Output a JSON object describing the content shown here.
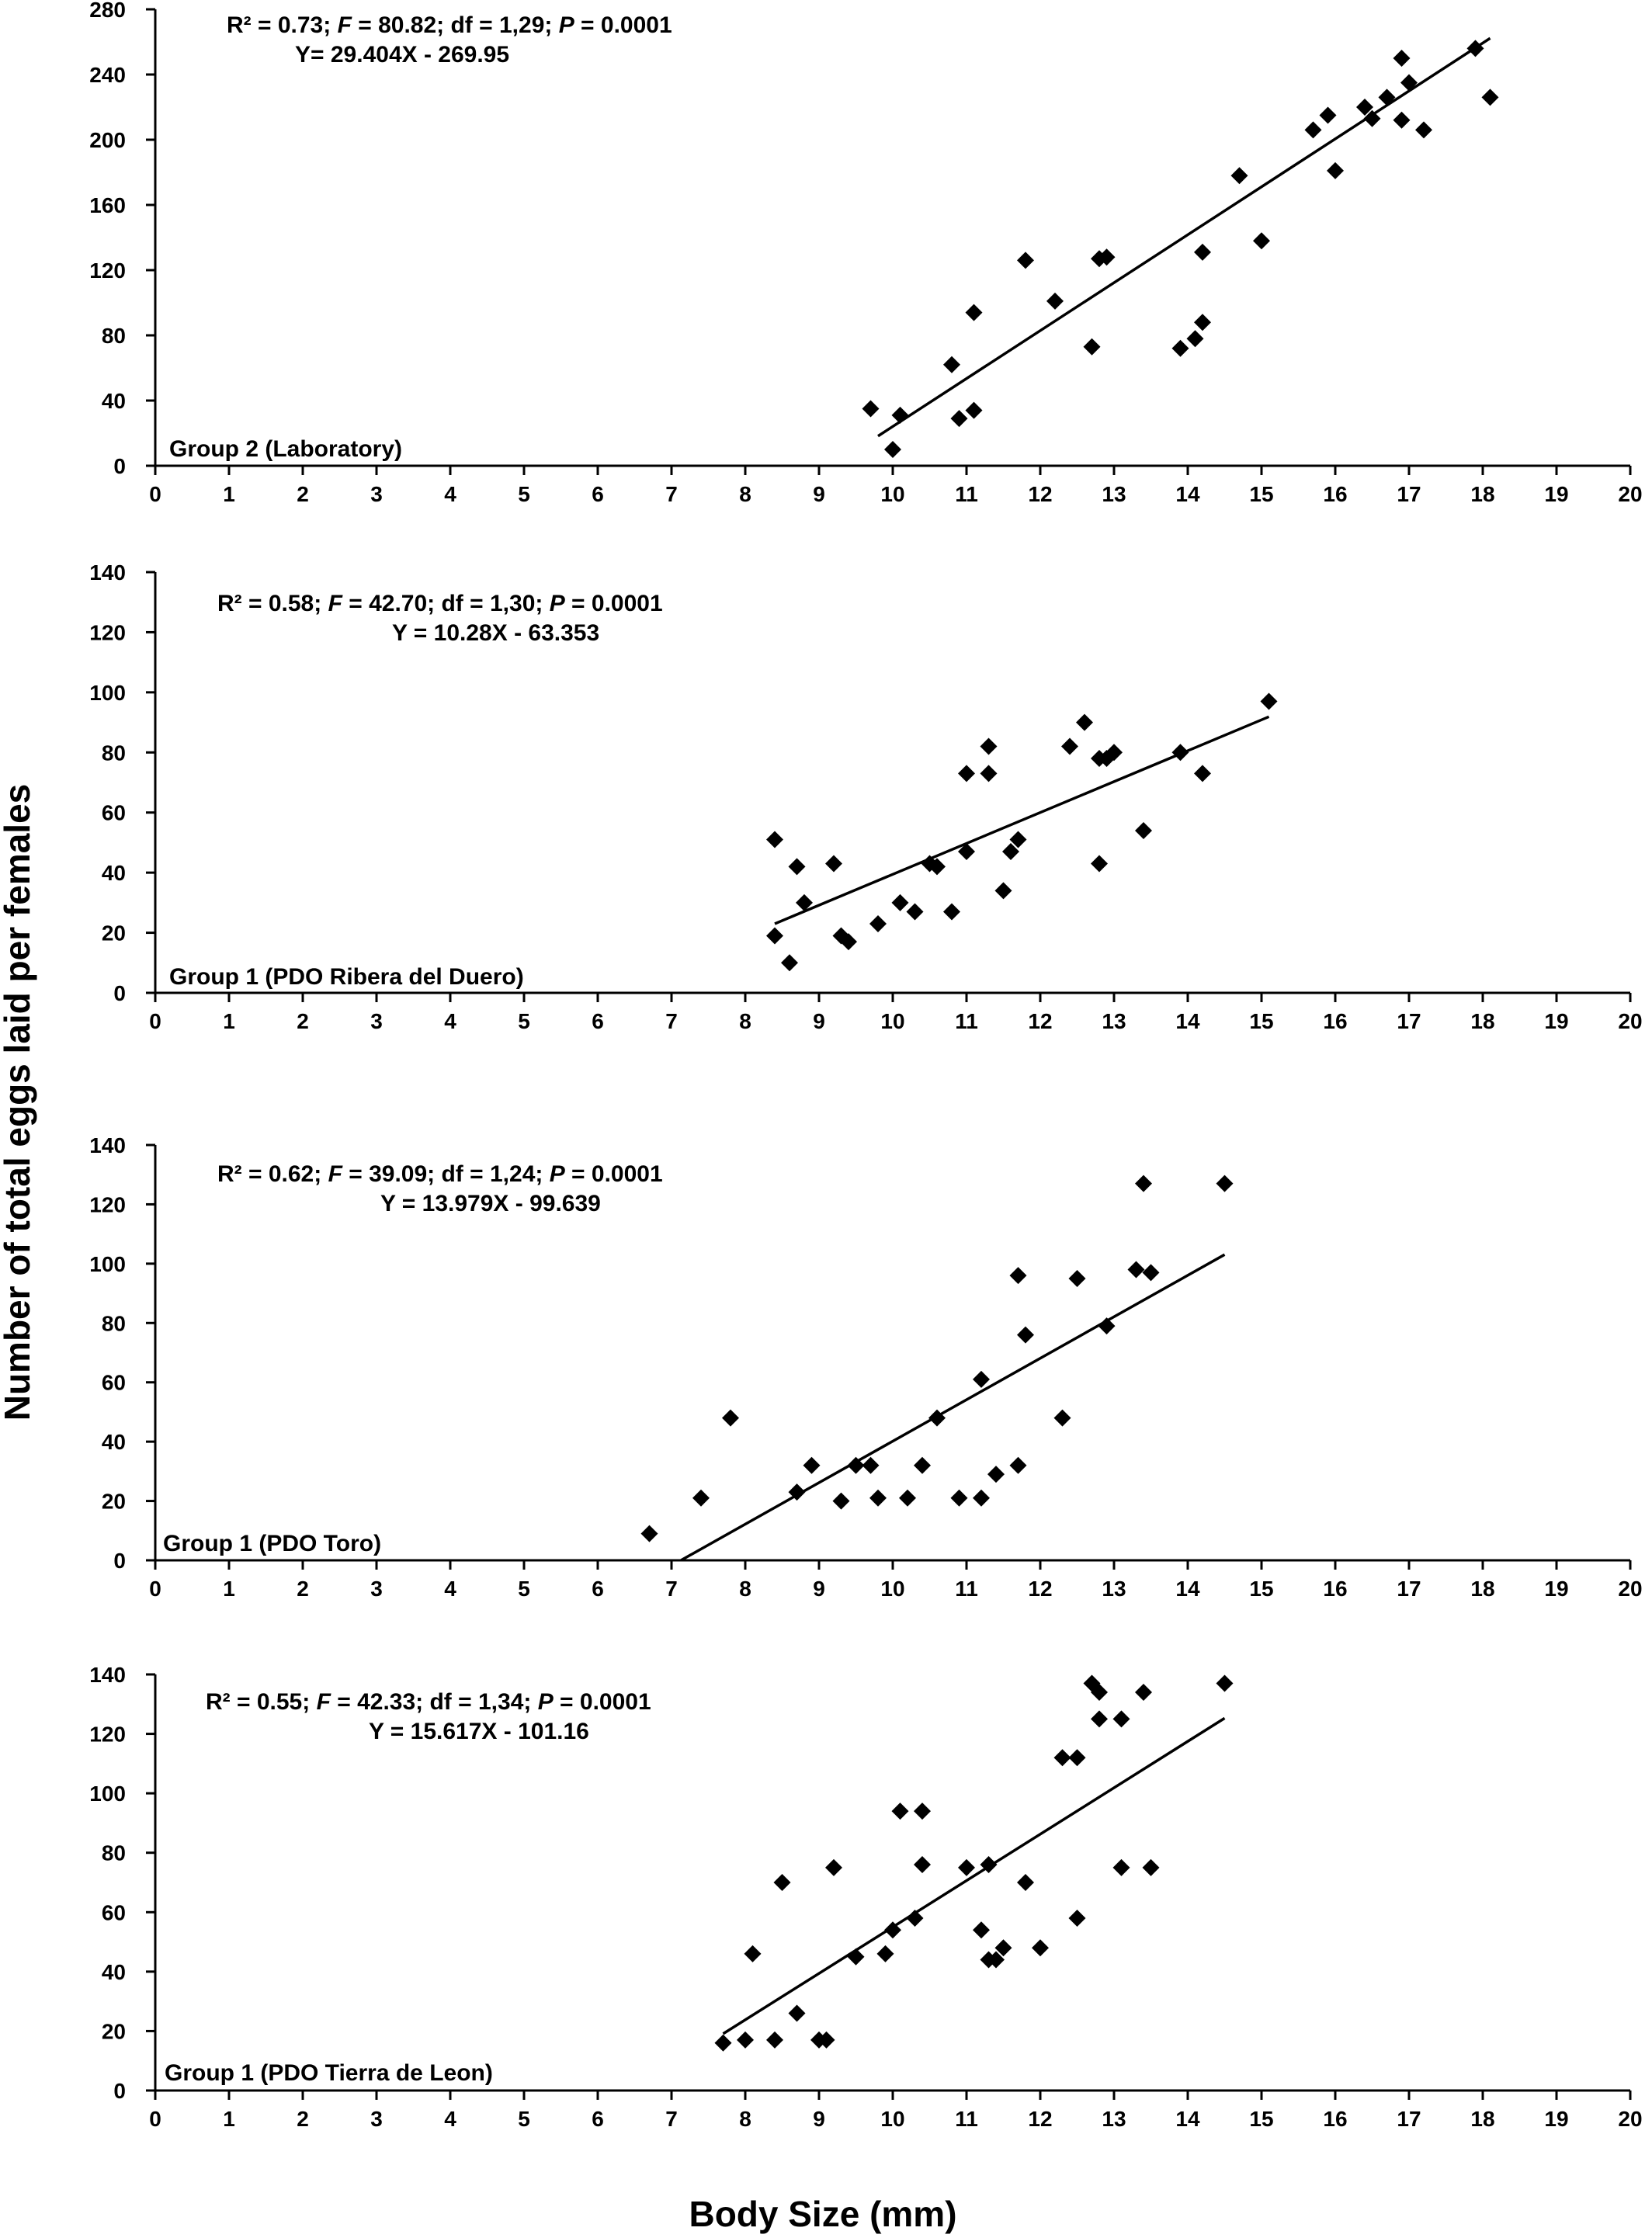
{
  "figure": {
    "ylabel": "Number of total eggs laid per females",
    "xlabel": "Body Size (mm)"
  },
  "chart_data": [
    {
      "type": "scatter",
      "group_label": "Group 2 (Laboratory)",
      "stats_parts": [
        "R² = 0.73; ",
        "F",
        " = 80.82; df  = 1,29; ",
        "P",
        " = 0.0001"
      ],
      "equation": "Y= 29.404X - 269.95",
      "xlim": [
        0,
        20
      ],
      "ylim": [
        0,
        280
      ],
      "xticks": [
        "0",
        "1",
        "2",
        "3",
        "4",
        "5",
        "6",
        "7",
        "8",
        "9",
        "10",
        "11",
        "12",
        "13",
        "14",
        "15",
        "16",
        "17",
        "18",
        "19",
        "20"
      ],
      "yticks": [
        "0",
        "40",
        "80",
        "120",
        "160",
        "200",
        "240",
        "280"
      ],
      "trend": {
        "x": [
          9.8,
          18.1
        ]
      },
      "points": [
        [
          9.7,
          35
        ],
        [
          10.0,
          10
        ],
        [
          10.1,
          31
        ],
        [
          10.8,
          62
        ],
        [
          10.9,
          29
        ],
        [
          11.1,
          34
        ],
        [
          11.1,
          94
        ],
        [
          11.8,
          126
        ],
        [
          12.2,
          101
        ],
        [
          12.7,
          73
        ],
        [
          12.8,
          127
        ],
        [
          12.9,
          128
        ],
        [
          13.9,
          72
        ],
        [
          14.1,
          78
        ],
        [
          14.2,
          88
        ],
        [
          14.2,
          131
        ],
        [
          14.7,
          178
        ],
        [
          15.0,
          138
        ],
        [
          15.7,
          206
        ],
        [
          15.9,
          215
        ],
        [
          16.0,
          181
        ],
        [
          16.4,
          220
        ],
        [
          16.5,
          213
        ],
        [
          16.7,
          226
        ],
        [
          16.9,
          212
        ],
        [
          16.9,
          250
        ],
        [
          17.0,
          235
        ],
        [
          17.2,
          206
        ],
        [
          17.9,
          256
        ],
        [
          18.1,
          226
        ]
      ]
    },
    {
      "type": "scatter",
      "group_label": "Group 1 (PDO Ribera del Duero)",
      "stats_parts": [
        "R² = 0.58; ",
        "F",
        " = 42.70; df  = 1,30; ",
        "P",
        " = 0.0001"
      ],
      "equation": "Y = 10.28X - 63.353",
      "xlim": [
        0,
        20
      ],
      "ylim": [
        0,
        140
      ],
      "xticks": [
        "0",
        "1",
        "2",
        "3",
        "4",
        "5",
        "6",
        "7",
        "8",
        "9",
        "10",
        "11",
        "12",
        "13",
        "14",
        "15",
        "16",
        "17",
        "18",
        "19",
        "20"
      ],
      "yticks": [
        "0",
        "20",
        "40",
        "60",
        "80",
        "100",
        "120",
        "140"
      ],
      "trend": {
        "x": [
          8.4,
          15.1
        ]
      },
      "points": [
        [
          8.4,
          51
        ],
        [
          8.4,
          19
        ],
        [
          8.6,
          10
        ],
        [
          8.7,
          42
        ],
        [
          8.8,
          30
        ],
        [
          9.2,
          43
        ],
        [
          9.3,
          19
        ],
        [
          9.4,
          17
        ],
        [
          9.8,
          23
        ],
        [
          10.1,
          30
        ],
        [
          10.3,
          27
        ],
        [
          10.5,
          43
        ],
        [
          10.6,
          42
        ],
        [
          10.8,
          27
        ],
        [
          11.0,
          47
        ],
        [
          11.0,
          73
        ],
        [
          11.3,
          73
        ],
        [
          11.3,
          82
        ],
        [
          11.5,
          34
        ],
        [
          11.6,
          47
        ],
        [
          11.7,
          51
        ],
        [
          12.4,
          82
        ],
        [
          12.6,
          90
        ],
        [
          12.8,
          43
        ],
        [
          12.8,
          78
        ],
        [
          12.9,
          78
        ],
        [
          13.0,
          80
        ],
        [
          13.4,
          54
        ],
        [
          13.9,
          80
        ],
        [
          14.2,
          73
        ],
        [
          15.1,
          97
        ]
      ]
    },
    {
      "type": "scatter",
      "group_label": "Group 1 (PDO Toro)",
      "stats_parts": [
        "R² = 0.62; ",
        "F",
        " = 39.09; df  = 1,24; ",
        "P",
        " = 0.0001"
      ],
      "equation": "Y = 13.979X - 99.639",
      "xlim": [
        0,
        20
      ],
      "ylim": [
        0,
        140
      ],
      "xticks": [
        "0",
        "1",
        "2",
        "3",
        "4",
        "5",
        "6",
        "7",
        "8",
        "9",
        "10",
        "11",
        "12",
        "13",
        "14",
        "15",
        "16",
        "17",
        "18",
        "19",
        "20"
      ],
      "yticks": [
        "0",
        "20",
        "40",
        "60",
        "80",
        "100",
        "120",
        "140"
      ],
      "trend": {
        "x": [
          7.13,
          14.5
        ]
      },
      "points": [
        [
          6.7,
          9
        ],
        [
          7.4,
          21
        ],
        [
          7.8,
          48
        ],
        [
          8.7,
          23
        ],
        [
          8.9,
          32
        ],
        [
          9.3,
          20
        ],
        [
          9.5,
          32
        ],
        [
          9.7,
          32
        ],
        [
          9.8,
          21
        ],
        [
          10.2,
          21
        ],
        [
          10.4,
          32
        ],
        [
          10.6,
          48
        ],
        [
          10.9,
          21
        ],
        [
          11.2,
          21
        ],
        [
          11.2,
          61
        ],
        [
          11.4,
          29
        ],
        [
          11.7,
          32
        ],
        [
          11.7,
          96
        ],
        [
          11.8,
          76
        ],
        [
          12.3,
          48
        ],
        [
          12.5,
          95
        ],
        [
          12.9,
          79
        ],
        [
          13.3,
          98
        ],
        [
          13.5,
          97
        ],
        [
          13.4,
          127
        ],
        [
          14.5,
          127
        ]
      ]
    },
    {
      "type": "scatter",
      "group_label": "Group 1 (PDO Tierra de Leon)",
      "stats_parts": [
        "R² = 0.55; ",
        "F",
        " = 42.33; df  = 1,34; ",
        "P",
        " = 0.0001"
      ],
      "equation": "Y = 15.617X - 101.16",
      "xlim": [
        0,
        20
      ],
      "ylim": [
        0,
        140
      ],
      "xticks": [
        "0",
        "1",
        "2",
        "3",
        "4",
        "5",
        "6",
        "7",
        "8",
        "9",
        "10",
        "11",
        "12",
        "13",
        "14",
        "15",
        "16",
        "17",
        "18",
        "19",
        "20"
      ],
      "yticks": [
        "0",
        "20",
        "40",
        "60",
        "80",
        "100",
        "120",
        "140"
      ],
      "trend": {
        "x": [
          7.7,
          14.5
        ]
      },
      "points": [
        [
          7.7,
          16
        ],
        [
          8.0,
          17
        ],
        [
          8.1,
          46
        ],
        [
          8.4,
          17
        ],
        [
          8.5,
          70
        ],
        [
          8.7,
          26
        ],
        [
          9.0,
          17
        ],
        [
          9.1,
          17
        ],
        [
          9.2,
          75
        ],
        [
          9.5,
          45
        ],
        [
          9.9,
          46
        ],
        [
          10.0,
          54
        ],
        [
          10.1,
          94
        ],
        [
          10.3,
          58
        ],
        [
          10.4,
          76
        ],
        [
          10.4,
          94
        ],
        [
          11.0,
          75
        ],
        [
          11.2,
          54
        ],
        [
          11.3,
          44
        ],
        [
          11.3,
          76
        ],
        [
          11.4,
          44
        ],
        [
          11.5,
          48
        ],
        [
          11.8,
          70
        ],
        [
          12.0,
          48
        ],
        [
          12.3,
          112
        ],
        [
          12.5,
          112
        ],
        [
          12.5,
          58
        ],
        [
          12.7,
          137
        ],
        [
          12.8,
          125
        ],
        [
          12.8,
          134
        ],
        [
          13.1,
          75
        ],
        [
          13.1,
          125
        ],
        [
          13.4,
          134
        ],
        [
          13.5,
          75
        ],
        [
          14.5,
          137
        ]
      ]
    }
  ]
}
